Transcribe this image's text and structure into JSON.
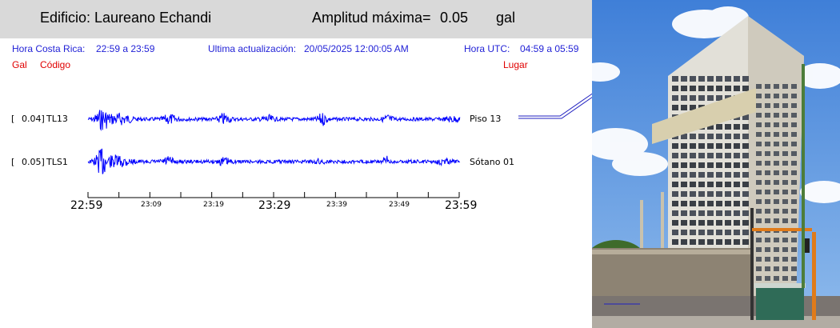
{
  "header": {
    "building_label": "Edificio:",
    "building_name": "Laureano Echandi",
    "amp_label": "Amplitud máxima=",
    "amp_value": "0.05",
    "amp_unit": "gal"
  },
  "info": {
    "cr_label": "Hora Costa Rica:",
    "cr_range": "22:59 a 23:59",
    "update_label": "Ultima actualización:",
    "update_value": "20/05/2025 12:00:05 AM",
    "utc_label": "Hora UTC:",
    "utc_range": "04:59 a 05:59"
  },
  "columns": {
    "gal": "Gal",
    "code": "Código",
    "place": "Lugar"
  },
  "channels": [
    {
      "bracket": "[",
      "gal": "0.04]",
      "code": "TL13",
      "place": "Piso 13"
    },
    {
      "bracket": "[",
      "gal": "0.05]",
      "code": "TLS1",
      "place": "Sótano 01"
    }
  ],
  "time_axis": {
    "major": [
      "22:59",
      "23:29",
      "23:59"
    ],
    "minor": [
      "23:09",
      "23:19",
      "23:39",
      "23:49"
    ]
  },
  "colors": {
    "trace": "#0000ff",
    "info_text": "#1f1fd6",
    "column_head": "#e00000",
    "header_bg": "#d9d9d9"
  }
}
